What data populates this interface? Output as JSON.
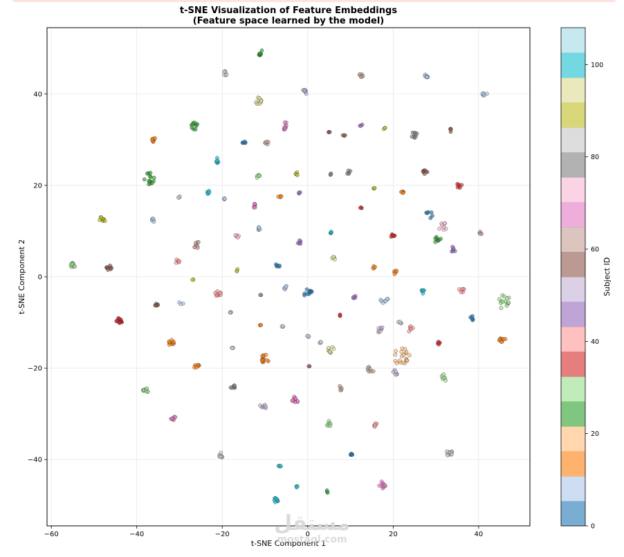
{
  "chart_data": {
    "type": "scatter",
    "title": "t-SNE Visualization of Feature Embeddings",
    "subtitle": "(Feature space learned by the model)",
    "xlabel": "t-SNE Component 1",
    "ylabel": "t-SNE Component 2",
    "xlim": [
      -61,
      52
    ],
    "ylim": [
      -54.5,
      54.5
    ],
    "xticks": [
      -60,
      -40,
      -20,
      0,
      20,
      40
    ],
    "yticks": [
      -40,
      -20,
      0,
      20,
      40
    ],
    "xtick_labels": [
      "−60",
      "−40",
      "−20",
      "0",
      "20",
      "40"
    ],
    "ytick_labels": [
      "−40",
      "−20",
      "0",
      "20",
      "40"
    ],
    "grid": true,
    "colorbar": {
      "label": "Subject ID",
      "range": [
        0,
        108
      ],
      "ticks": [
        0,
        20,
        40,
        60,
        80,
        100
      ],
      "tick_labels": [
        "0",
        "20",
        "40",
        "60",
        "80",
        "100"
      ],
      "colors": [
        "#1f77b4",
        "#aec7e8",
        "#ff7f0e",
        "#ffbb78",
        "#2ca02c",
        "#98df8a",
        "#d62728",
        "#ff9896",
        "#9467bd",
        "#c5b0d5",
        "#8c564b",
        "#c49c94",
        "#e377c2",
        "#f7b6d2",
        "#7f7f7f",
        "#c7c7c7",
        "#bcbd22",
        "#dbdb8d",
        "#17becf",
        "#9edae5"
      ]
    },
    "clusters": [
      {
        "x": -11,
        "y": 49,
        "c": 4,
        "n": 8,
        "s": 0.6
      },
      {
        "x": -19.5,
        "y": 44.5,
        "c": 15,
        "n": 6,
        "s": 0.6
      },
      {
        "x": 12.5,
        "y": 44,
        "c": 11,
        "n": 6,
        "s": 0.6
      },
      {
        "x": 28,
        "y": 44,
        "c": 1,
        "n": 7,
        "s": 0.6
      },
      {
        "x": -0.5,
        "y": 40.5,
        "c": 9,
        "n": 8,
        "s": 0.7
      },
      {
        "x": 41.5,
        "y": 40,
        "c": 1,
        "n": 6,
        "s": 0.6
      },
      {
        "x": -11.5,
        "y": 38.5,
        "c": 17,
        "n": 10,
        "s": 0.8
      },
      {
        "x": -26.5,
        "y": 33,
        "c": 4,
        "n": 10,
        "s": 0.8
      },
      {
        "x": -5,
        "y": 33,
        "c": 12,
        "n": 9,
        "s": 1.0
      },
      {
        "x": 5,
        "y": 31.5,
        "c": 10,
        "n": 3,
        "s": 0.3
      },
      {
        "x": 8.5,
        "y": 31,
        "c": 10,
        "n": 3,
        "s": 0.3
      },
      {
        "x": 12.5,
        "y": 33,
        "c": 8,
        "n": 3,
        "s": 0.4
      },
      {
        "x": 18,
        "y": 32.5,
        "c": 16,
        "n": 3,
        "s": 0.4
      },
      {
        "x": 25,
        "y": 31,
        "c": 14,
        "n": 8,
        "s": 0.7
      },
      {
        "x": 33.5,
        "y": 32,
        "c": 10,
        "n": 4,
        "s": 0.4
      },
      {
        "x": -36,
        "y": 30,
        "c": 2,
        "n": 8,
        "s": 0.6
      },
      {
        "x": -15,
        "y": 29.5,
        "c": 0,
        "n": 5,
        "s": 0.5
      },
      {
        "x": -9.5,
        "y": 29,
        "c": 11,
        "n": 5,
        "s": 0.6
      },
      {
        "x": -21,
        "y": 25.5,
        "c": 18,
        "n": 6,
        "s": 0.6
      },
      {
        "x": -37,
        "y": 21.5,
        "c": 4,
        "n": 14,
        "s": 1.3
      },
      {
        "x": -11.5,
        "y": 22,
        "c": 5,
        "n": 5,
        "s": 0.5
      },
      {
        "x": -2.5,
        "y": 22.5,
        "c": 16,
        "n": 4,
        "s": 0.4
      },
      {
        "x": 5.5,
        "y": 22.5,
        "c": 14,
        "n": 3,
        "s": 0.3
      },
      {
        "x": 9.5,
        "y": 23,
        "c": 14,
        "n": 5,
        "s": 0.5
      },
      {
        "x": 27.5,
        "y": 23,
        "c": 10,
        "n": 7,
        "s": 0.6
      },
      {
        "x": -23.5,
        "y": 18.5,
        "c": 18,
        "n": 5,
        "s": 0.5
      },
      {
        "x": -2,
        "y": 18.5,
        "c": 8,
        "n": 3,
        "s": 0.3
      },
      {
        "x": 15.5,
        "y": 19.5,
        "c": 16,
        "n": 3,
        "s": 0.3
      },
      {
        "x": 22,
        "y": 18.5,
        "c": 2,
        "n": 5,
        "s": 0.5
      },
      {
        "x": 35.5,
        "y": 20,
        "c": 6,
        "n": 6,
        "s": 0.6
      },
      {
        "x": -30,
        "y": 17.5,
        "c": 15,
        "n": 3,
        "s": 0.4
      },
      {
        "x": -19.5,
        "y": 17,
        "c": 1,
        "n": 3,
        "s": 0.3
      },
      {
        "x": -6.5,
        "y": 17.5,
        "c": 2,
        "n": 4,
        "s": 0.4
      },
      {
        "x": -12.5,
        "y": 15.5,
        "c": 12,
        "n": 6,
        "s": 0.5
      },
      {
        "x": 12.5,
        "y": 15,
        "c": 6,
        "n": 3,
        "s": 0.3
      },
      {
        "x": -48,
        "y": 12.5,
        "c": 16,
        "n": 9,
        "s": 0.7
      },
      {
        "x": -36,
        "y": 12.5,
        "c": 1,
        "n": 6,
        "s": 0.5
      },
      {
        "x": 28.5,
        "y": 13.5,
        "c": 0,
        "n": 6,
        "s": 1.0
      },
      {
        "x": 31.5,
        "y": 11,
        "c": 13,
        "n": 8,
        "s": 1.0
      },
      {
        "x": -11.5,
        "y": 10.5,
        "c": 1,
        "n": 6,
        "s": 0.5
      },
      {
        "x": 5.5,
        "y": 10,
        "c": 18,
        "n": 5,
        "s": 0.5
      },
      {
        "x": -16.5,
        "y": 9,
        "c": 13,
        "n": 5,
        "s": 0.5
      },
      {
        "x": 20,
        "y": 9,
        "c": 6,
        "n": 7,
        "s": 0.6
      },
      {
        "x": 30.5,
        "y": 8,
        "c": 4,
        "n": 8,
        "s": 0.8
      },
      {
        "x": 40.5,
        "y": 9.5,
        "c": 11,
        "n": 4,
        "s": 0.4
      },
      {
        "x": -26,
        "y": 7,
        "c": 11,
        "n": 8,
        "s": 0.8
      },
      {
        "x": -2,
        "y": 7.5,
        "c": 8,
        "n": 5,
        "s": 0.5
      },
      {
        "x": 34,
        "y": 6,
        "c": 8,
        "n": 6,
        "s": 0.6
      },
      {
        "x": -55,
        "y": 2.5,
        "c": 5,
        "n": 9,
        "s": 0.7
      },
      {
        "x": -46.5,
        "y": 2,
        "c": 10,
        "n": 8,
        "s": 0.6
      },
      {
        "x": -30.5,
        "y": 3.5,
        "c": 7,
        "n": 6,
        "s": 0.6
      },
      {
        "x": -16.5,
        "y": 1.5,
        "c": 16,
        "n": 3,
        "s": 0.3
      },
      {
        "x": -7,
        "y": 2.5,
        "c": 0,
        "n": 5,
        "s": 0.5
      },
      {
        "x": 6,
        "y": 4,
        "c": 17,
        "n": 4,
        "s": 0.4
      },
      {
        "x": 15.5,
        "y": 2,
        "c": 2,
        "n": 4,
        "s": 0.4
      },
      {
        "x": 20.5,
        "y": 1,
        "c": 2,
        "n": 5,
        "s": 0.5
      },
      {
        "x": -27,
        "y": -0.5,
        "c": 16,
        "n": 2,
        "s": 0.3
      },
      {
        "x": -44,
        "y": -9.5,
        "c": 6,
        "n": 14,
        "s": 0.8
      },
      {
        "x": -35.5,
        "y": -6,
        "c": 10,
        "n": 6,
        "s": 0.5
      },
      {
        "x": -29.5,
        "y": -5.5,
        "c": 1,
        "n": 3,
        "s": 0.6
      },
      {
        "x": -21,
        "y": -4,
        "c": 7,
        "n": 9,
        "s": 0.9
      },
      {
        "x": -11,
        "y": -4,
        "c": 14,
        "n": 2,
        "s": 0.2
      },
      {
        "x": -5,
        "y": -2.5,
        "c": 1,
        "n": 5,
        "s": 0.6
      },
      {
        "x": 0,
        "y": -3.5,
        "c": 0,
        "n": 10,
        "s": 1.0
      },
      {
        "x": 11,
        "y": -4.5,
        "c": 8,
        "n": 4,
        "s": 0.4
      },
      {
        "x": 18,
        "y": -5,
        "c": 1,
        "n": 7,
        "s": 1.0
      },
      {
        "x": 27,
        "y": -3,
        "c": 18,
        "n": 6,
        "s": 0.7
      },
      {
        "x": 36,
        "y": -3,
        "c": 7,
        "n": 7,
        "s": 0.7
      },
      {
        "x": 46,
        "y": -5.5,
        "c": 5,
        "n": 14,
        "s": 1.6
      },
      {
        "x": -18,
        "y": -8,
        "c": 9,
        "n": 3,
        "s": 0.3
      },
      {
        "x": 7.5,
        "y": -8.5,
        "c": 6,
        "n": 3,
        "s": 0.3
      },
      {
        "x": 21.5,
        "y": -10,
        "c": 15,
        "n": 4,
        "s": 0.5
      },
      {
        "x": 38.5,
        "y": -9,
        "c": 0,
        "n": 5,
        "s": 0.5
      },
      {
        "x": -11,
        "y": -10.5,
        "c": 2,
        "n": 3,
        "s": 0.2
      },
      {
        "x": -6,
        "y": -11,
        "c": 15,
        "n": 3,
        "s": 0.3
      },
      {
        "x": 17,
        "y": -11.5,
        "c": 9,
        "n": 7,
        "s": 0.8
      },
      {
        "x": 24,
        "y": -11.5,
        "c": 7,
        "n": 6,
        "s": 0.7
      },
      {
        "x": 0,
        "y": -13,
        "c": 1,
        "n": 3,
        "s": 0.3
      },
      {
        "x": 45.5,
        "y": -13.5,
        "c": 2,
        "n": 10,
        "s": 0.8
      },
      {
        "x": -32,
        "y": -14.5,
        "c": 2,
        "n": 10,
        "s": 0.7
      },
      {
        "x": -17.5,
        "y": -15.5,
        "c": 15,
        "n": 3,
        "s": 0.3
      },
      {
        "x": 3,
        "y": -14.5,
        "c": 15,
        "n": 3,
        "s": 0.3
      },
      {
        "x": 5.5,
        "y": -16,
        "c": 17,
        "n": 8,
        "s": 0.8
      },
      {
        "x": 30.5,
        "y": -14.5,
        "c": 6,
        "n": 5,
        "s": 0.5
      },
      {
        "x": -10,
        "y": -18,
        "c": 2,
        "n": 14,
        "s": 1.0
      },
      {
        "x": 22,
        "y": -17.5,
        "c": 3,
        "n": 20,
        "s": 2.0
      },
      {
        "x": -26,
        "y": -19.5,
        "c": 2,
        "n": 7,
        "s": 0.6
      },
      {
        "x": 0.5,
        "y": -19.5,
        "c": 10,
        "n": 2,
        "s": 0.3
      },
      {
        "x": 14.5,
        "y": -20.5,
        "c": 11,
        "n": 7,
        "s": 0.9
      },
      {
        "x": 20.5,
        "y": -21,
        "c": 9,
        "n": 6,
        "s": 0.7
      },
      {
        "x": 32,
        "y": -22,
        "c": 5,
        "n": 6,
        "s": 0.8
      },
      {
        "x": -38,
        "y": -25,
        "c": 5,
        "n": 10,
        "s": 0.7
      },
      {
        "x": -17.5,
        "y": -24,
        "c": 14,
        "n": 7,
        "s": 0.6
      },
      {
        "x": 7.5,
        "y": -24.5,
        "c": 11,
        "n": 5,
        "s": 0.6
      },
      {
        "x": -10.5,
        "y": -28.5,
        "c": 9,
        "n": 7,
        "s": 0.8
      },
      {
        "x": -3,
        "y": -27,
        "c": 12,
        "n": 10,
        "s": 0.8
      },
      {
        "x": -31.5,
        "y": -31,
        "c": 12,
        "n": 7,
        "s": 0.6
      },
      {
        "x": 5,
        "y": -32,
        "c": 5,
        "n": 7,
        "s": 0.7
      },
      {
        "x": 16,
        "y": -32.5,
        "c": 7,
        "n": 5,
        "s": 0.5
      },
      {
        "x": -20.5,
        "y": -39,
        "c": 15,
        "n": 8,
        "s": 0.7
      },
      {
        "x": 10,
        "y": -39,
        "c": 0,
        "n": 5,
        "s": 0.5
      },
      {
        "x": 33,
        "y": -38.5,
        "c": 15,
        "n": 12,
        "s": 0.8
      },
      {
        "x": -6.5,
        "y": -41.5,
        "c": 18,
        "n": 4,
        "s": 0.4
      },
      {
        "x": -2.5,
        "y": -46,
        "c": 18,
        "n": 3,
        "s": 0.3
      },
      {
        "x": 4.5,
        "y": -47,
        "c": 4,
        "n": 3,
        "s": 0.3
      },
      {
        "x": 17.5,
        "y": -45.5,
        "c": 12,
        "n": 9,
        "s": 0.8
      },
      {
        "x": -7.5,
        "y": -49,
        "c": 18,
        "n": 8,
        "s": 0.6
      }
    ]
  },
  "watermark": {
    "arabic": "مستقل",
    "latin": "mostaql.com"
  }
}
